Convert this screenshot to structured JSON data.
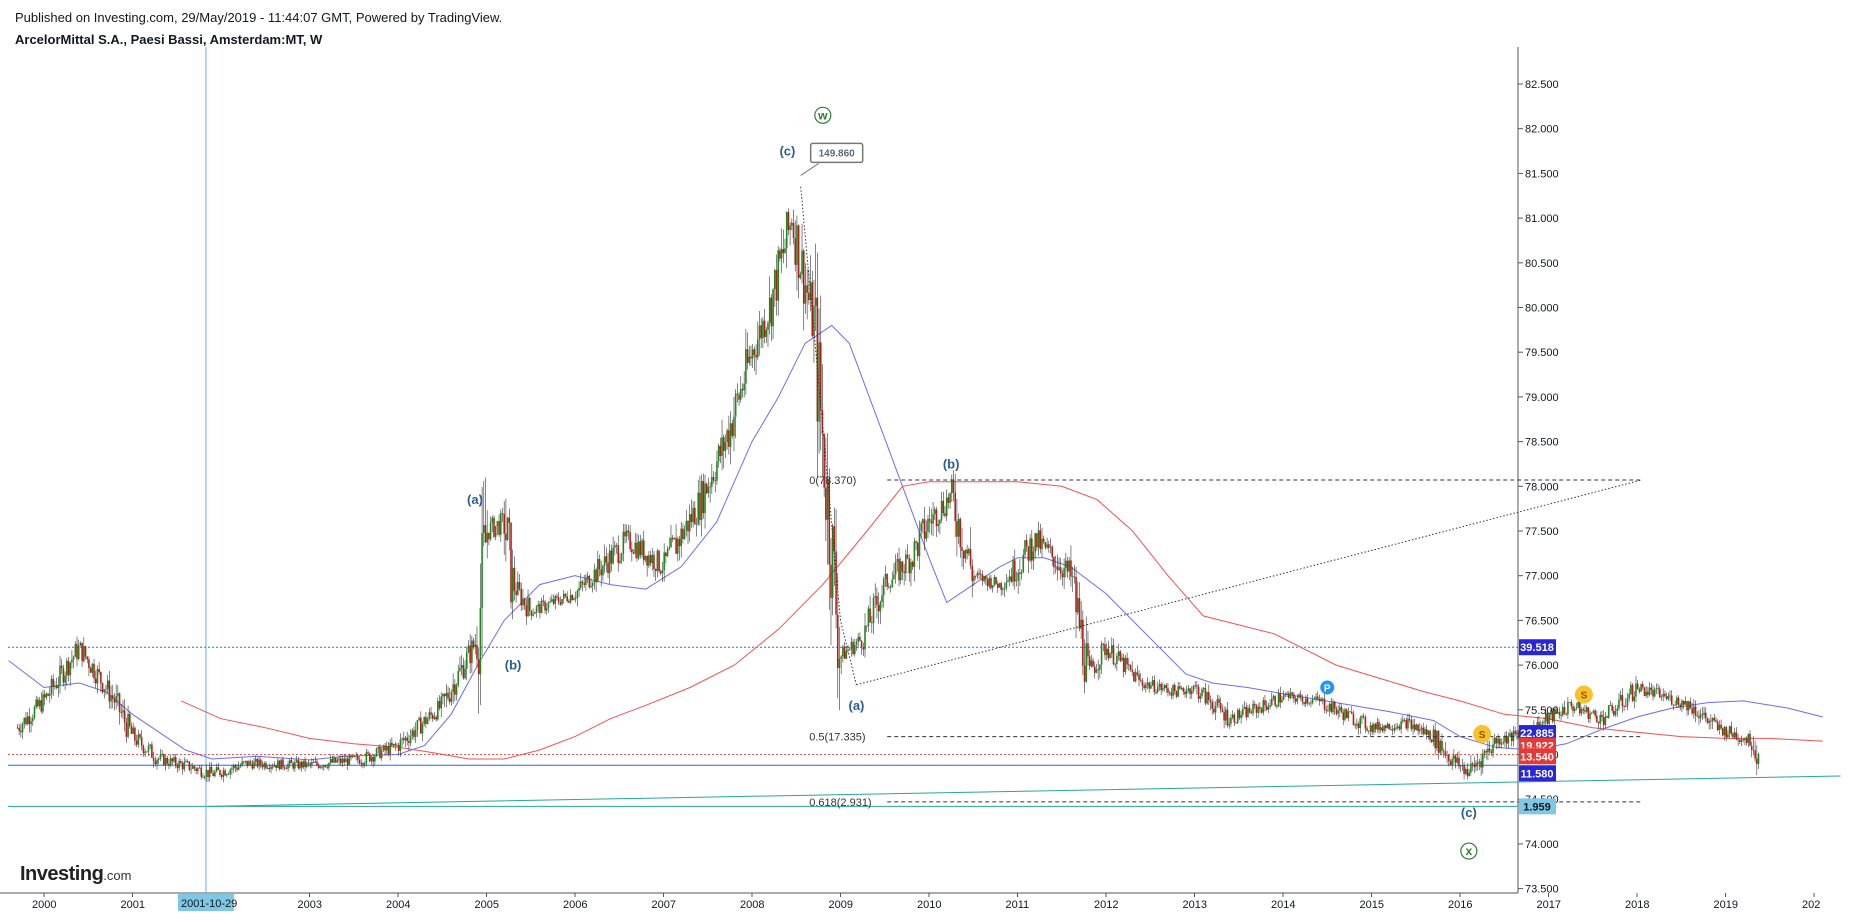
{
  "header": {
    "published": "Published on Investing.com, 29/May/2019 - 11:44:07 GMT, Powered by TradingView.",
    "symbol": "ArcelorMittal S.A., Paesi Bassi, Amsterdam:MT, W"
  },
  "logo": {
    "main": "Investing",
    "suffix": ".com"
  },
  "chart_data": {
    "type": "candlestick-line",
    "xlim": [
      "1999-07",
      "2020-07"
    ],
    "ylim": [
      73.3,
      82.75
    ],
    "x_ticks": [
      "2000",
      "2001",
      "2003",
      "2004",
      "2005",
      "2006",
      "2007",
      "2008",
      "2009",
      "2010",
      "2011",
      "2012",
      "2013",
      "2014",
      "2015",
      "2016",
      "2017",
      "2018",
      "2019",
      "202"
    ],
    "x_tick_years": [
      2000.0,
      2001.0,
      2003.0,
      2004.0,
      2005.0,
      2006.0,
      2007.0,
      2008.0,
      2009.0,
      2010.0,
      2011.0,
      2012.0,
      2013.0,
      2014.0,
      2015.0,
      2016.0,
      2017.0,
      2018.0,
      2019.0,
      2020.0
    ],
    "y_ticks": [
      "73.500",
      "74.000",
      "74.500",
      "75.000",
      "75.500",
      "76.000",
      "76.500",
      "77.000",
      "77.500",
      "78.000",
      "78.500",
      "79.000",
      "79.500",
      "80.000",
      "80.500",
      "81.000",
      "81.500",
      "82.000",
      "82.500"
    ],
    "y_tick_values": [
      73.5,
      74.0,
      74.5,
      75.0,
      75.5,
      76.0,
      76.5,
      77.0,
      77.5,
      78.0,
      78.5,
      79.0,
      79.5,
      80.0,
      80.5,
      81.0,
      81.5,
      82.0,
      82.5
    ],
    "cursor": {
      "x_label": "2001-10-29",
      "x": 2001.83
    },
    "price_anchors": [
      [
        1999.7,
        75.3
      ],
      [
        2000.0,
        75.6
      ],
      [
        2000.4,
        76.2
      ],
      [
        2000.8,
        75.6
      ],
      [
        2001.0,
        75.2
      ],
      [
        2001.3,
        74.95
      ],
      [
        2001.7,
        74.85
      ],
      [
        2001.9,
        74.78
      ],
      [
        2002.3,
        74.9
      ],
      [
        2003.0,
        74.88
      ],
      [
        2003.6,
        74.95
      ],
      [
        2004.0,
        75.1
      ],
      [
        2004.5,
        75.55
      ],
      [
        2004.9,
        76.3
      ],
      [
        2005.0,
        77.5
      ],
      [
        2005.2,
        77.6
      ],
      [
        2005.3,
        76.9
      ],
      [
        2005.5,
        76.6
      ],
      [
        2006.0,
        76.8
      ],
      [
        2006.3,
        77.1
      ],
      [
        2006.6,
        77.4
      ],
      [
        2007.0,
        77.1
      ],
      [
        2007.4,
        77.8
      ],
      [
        2007.7,
        78.5
      ],
      [
        2008.0,
        79.5
      ],
      [
        2008.2,
        80.0
      ],
      [
        2008.45,
        81.0
      ],
      [
        2008.7,
        79.8
      ],
      [
        2008.8,
        78.5
      ],
      [
        2009.0,
        76.1
      ],
      [
        2009.25,
        76.3
      ],
      [
        2009.5,
        76.9
      ],
      [
        2009.8,
        77.2
      ],
      [
        2010.0,
        77.6
      ],
      [
        2010.25,
        77.9
      ],
      [
        2010.5,
        77.0
      ],
      [
        2010.8,
        76.9
      ],
      [
        2011.0,
        77.1
      ],
      [
        2011.2,
        77.4
      ],
      [
        2011.6,
        77.0
      ],
      [
        2011.8,
        75.9
      ],
      [
        2012.0,
        76.2
      ],
      [
        2012.4,
        75.8
      ],
      [
        2012.8,
        75.7
      ],
      [
        2013.0,
        75.75
      ],
      [
        2013.4,
        75.4
      ],
      [
        2013.8,
        75.55
      ],
      [
        2014.0,
        75.65
      ],
      [
        2014.4,
        75.6
      ],
      [
        2014.8,
        75.4
      ],
      [
        2015.0,
        75.3
      ],
      [
        2015.4,
        75.35
      ],
      [
        2015.7,
        75.2
      ],
      [
        2015.9,
        74.95
      ],
      [
        2016.1,
        74.8
      ],
      [
        2016.4,
        75.15
      ],
      [
        2016.8,
        75.25
      ],
      [
        2017.0,
        75.4
      ],
      [
        2017.25,
        75.55
      ],
      [
        2017.6,
        75.4
      ],
      [
        2017.8,
        75.55
      ],
      [
        2018.0,
        75.75
      ],
      [
        2018.3,
        75.65
      ],
      [
        2018.6,
        75.55
      ],
      [
        2018.9,
        75.3
      ],
      [
        2019.3,
        75.15
      ],
      [
        2019.38,
        74.95
      ]
    ],
    "series": [
      {
        "name": "",
        "color": "#6d6df0",
        "points": [
          [
            1999.6,
            76.05
          ],
          [
            2000.0,
            75.75
          ],
          [
            2000.4,
            75.8
          ],
          [
            2000.7,
            75.7
          ],
          [
            2001.0,
            75.45
          ],
          [
            2001.3,
            75.25
          ],
          [
            2001.6,
            75.05
          ],
          [
            2001.9,
            74.95
          ],
          [
            2002.4,
            74.98
          ],
          [
            2003.0,
            74.94
          ],
          [
            2003.4,
            74.98
          ],
          [
            2004.0,
            75.0
          ],
          [
            2004.3,
            75.1
          ],
          [
            2004.6,
            75.45
          ],
          [
            2004.9,
            76.0
          ],
          [
            2005.2,
            76.5
          ],
          [
            2005.6,
            76.9
          ],
          [
            2006.0,
            77.0
          ],
          [
            2006.4,
            76.9
          ],
          [
            2006.8,
            76.85
          ],
          [
            2007.2,
            77.1
          ],
          [
            2007.6,
            77.6
          ],
          [
            2008.0,
            78.5
          ],
          [
            2008.3,
            79.0
          ],
          [
            2008.6,
            79.6
          ],
          [
            2008.9,
            79.8
          ],
          [
            2009.1,
            79.6
          ],
          [
            2009.4,
            78.8
          ],
          [
            2009.7,
            78.0
          ],
          [
            2010.0,
            77.2
          ],
          [
            2010.2,
            76.7
          ],
          [
            2010.5,
            76.9
          ],
          [
            2010.8,
            77.1
          ],
          [
            2011.0,
            77.2
          ],
          [
            2011.3,
            77.2
          ],
          [
            2011.6,
            77.1
          ],
          [
            2012.0,
            76.8
          ],
          [
            2012.5,
            76.3
          ],
          [
            2012.9,
            75.9
          ],
          [
            2013.2,
            75.8
          ],
          [
            2013.6,
            75.75
          ],
          [
            2014.0,
            75.68
          ],
          [
            2014.6,
            75.58
          ],
          [
            2015.2,
            75.48
          ],
          [
            2015.7,
            75.38
          ],
          [
            2016.0,
            75.2
          ],
          [
            2016.4,
            75.08
          ],
          [
            2016.8,
            75.05
          ],
          [
            2017.2,
            75.12
          ],
          [
            2017.6,
            75.28
          ],
          [
            2018.0,
            75.42
          ],
          [
            2018.4,
            75.52
          ],
          [
            2018.8,
            75.58
          ],
          [
            2019.2,
            75.6
          ],
          [
            2019.7,
            75.52
          ],
          [
            2020.1,
            75.42
          ]
        ]
      },
      {
        "name": "",
        "color": "#ef5350",
        "points": [
          [
            2001.55,
            75.6
          ],
          [
            2002.0,
            75.4
          ],
          [
            2002.5,
            75.3
          ],
          [
            2003.0,
            75.18
          ],
          [
            2003.5,
            75.12
          ],
          [
            2004.0,
            75.08
          ],
          [
            2004.4,
            75.02
          ],
          [
            2004.8,
            74.95
          ],
          [
            2005.2,
            74.95
          ],
          [
            2005.6,
            75.05
          ],
          [
            2006.0,
            75.2
          ],
          [
            2006.4,
            75.4
          ],
          [
            2006.8,
            75.55
          ],
          [
            2007.3,
            75.75
          ],
          [
            2007.8,
            76.0
          ],
          [
            2008.3,
            76.4
          ],
          [
            2008.8,
            76.9
          ],
          [
            2009.3,
            77.5
          ],
          [
            2009.7,
            78.0
          ],
          [
            2010.0,
            78.05
          ],
          [
            2010.5,
            78.05
          ],
          [
            2011.0,
            78.05
          ],
          [
            2011.5,
            78.0
          ],
          [
            2011.9,
            77.85
          ],
          [
            2012.3,
            77.5
          ],
          [
            2012.7,
            77.0
          ],
          [
            2013.1,
            76.55
          ],
          [
            2013.5,
            76.45
          ],
          [
            2013.9,
            76.35
          ],
          [
            2014.2,
            76.2
          ],
          [
            2014.6,
            76.0
          ],
          [
            2015.1,
            75.85
          ],
          [
            2015.6,
            75.7
          ],
          [
            2016.0,
            75.6
          ],
          [
            2016.5,
            75.45
          ],
          [
            2017.0,
            75.4
          ],
          [
            2017.5,
            75.3
          ],
          [
            2018.0,
            75.25
          ],
          [
            2018.5,
            75.2
          ],
          [
            2019.0,
            75.18
          ],
          [
            2019.5,
            75.18
          ],
          [
            2020.1,
            75.15
          ]
        ]
      }
    ],
    "horizontal_lines": [
      {
        "y": 76.2,
        "color": "#2962ff",
        "dash": "2,2",
        "label": "39.518"
      },
      {
        "y": 74.88,
        "color": "#2962ff",
        "dash": "",
        "label": "11.580"
      },
      {
        "y": 74.42,
        "color": "#26a69a",
        "dash": "",
        "label": "1.959"
      },
      {
        "y": 75.0,
        "color": "#ef5350",
        "dash": "2,2",
        "label": ""
      }
    ],
    "price_tags": [
      {
        "y": 76.2,
        "label": "39.518",
        "color": "#2727d8"
      },
      {
        "y": 75.24,
        "label": "22.885",
        "color": "#2727d8"
      },
      {
        "y": 75.1,
        "label": "19.922",
        "color": "#e53935"
      },
      {
        "y": 74.98,
        "label": "13.540",
        "color": "#e53935"
      },
      {
        "y": 74.79,
        "label": "11.580",
        "color": "#2727d8"
      },
      {
        "y": 74.42,
        "label": "1.959",
        "color": "#7ec8e3"
      }
    ],
    "fib_levels": [
      {
        "label": "0(78.370)",
        "y": 78.07,
        "x1": 2008.85,
        "x2": 2018.05
      },
      {
        "label": "0.5(17.335)",
        "y": 75.2,
        "x1": 2008.85,
        "x2": 2018.05
      },
      {
        "label": "0.618(2.931)",
        "y": 74.47,
        "x1": 2008.85,
        "x2": 2018.05
      }
    ],
    "trend_lines": [
      {
        "points": [
          [
            2009.18,
            75.78
          ],
          [
            2018.05,
            78.07
          ]
        ],
        "style": "dotted"
      },
      {
        "points": [
          [
            2008.55,
            81.35
          ],
          [
            2009.0,
            76.5
          ],
          [
            2009.18,
            75.78
          ]
        ],
        "style": "dotted"
      },
      {
        "points": [
          [
            2001.85,
            74.42
          ],
          [
            2020.3,
            74.76
          ]
        ],
        "style": "solid"
      }
    ],
    "wave_labels": [
      {
        "text": "(a)",
        "x": 2004.87,
        "y": 77.8
      },
      {
        "text": "(b)",
        "x": 2005.3,
        "y": 75.95
      },
      {
        "text": "(c)",
        "x": 2008.4,
        "y": 81.7
      },
      {
        "text": "(a)",
        "x": 2009.18,
        "y": 75.5
      },
      {
        "text": "(b)",
        "x": 2010.25,
        "y": 78.2
      },
      {
        "text": "(c)",
        "x": 2016.1,
        "y": 74.3
      }
    ],
    "circle_labels": [
      {
        "text": "w",
        "x": 2008.8,
        "y": 82.15,
        "color": "#2e7d32"
      },
      {
        "text": "x",
        "x": 2016.1,
        "y": 73.92,
        "color": "#2e7d32"
      }
    ],
    "markers": [
      {
        "text": "P",
        "x": 2014.5,
        "y": 75.75,
        "color": "#2196f3"
      },
      {
        "text": "S",
        "x": 2016.25,
        "y": 75.23,
        "color": "#fbc02d"
      },
      {
        "text": "S",
        "x": 2017.4,
        "y": 75.67,
        "color": "#fbc02d"
      }
    ],
    "callout": {
      "text": "149.860",
      "x": 2008.55,
      "y": 81.5
    }
  }
}
